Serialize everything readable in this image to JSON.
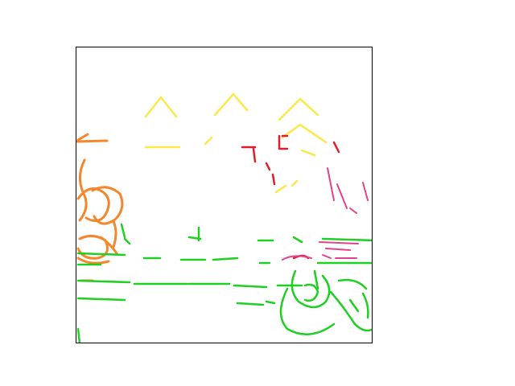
{
  "image": {
    "kind": "segmentation-edge-mask",
    "frame": "axes-box",
    "background_color": "#ffffff",
    "border_color": "#000000",
    "palette": {
      "orange": "#f5862a",
      "yellow": "#fbe84a",
      "red": "#e11d2c",
      "pink": "#e2428c",
      "green": "#1fcf22"
    },
    "regions": [
      {
        "name": "left-vehicle-graffiti",
        "color": "orange"
      },
      {
        "name": "roof-gables",
        "color": "yellow"
      },
      {
        "name": "building-signage",
        "color": "red"
      },
      {
        "name": "right-hatching",
        "color": "pink"
      },
      {
        "name": "ground-and-wheels",
        "color": "green"
      }
    ]
  }
}
